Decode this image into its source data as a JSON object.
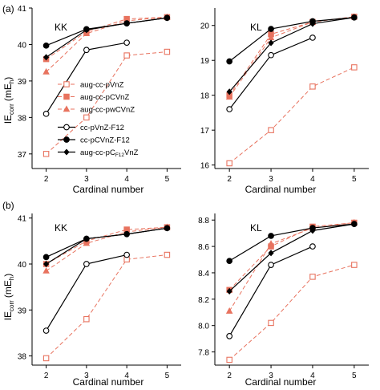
{
  "figure": {
    "ylabel_main": "IE",
    "ylabel_sub": "corr",
    "ylabel_unit": "(mE",
    "ylabel_unit_sub": "h",
    "ylabel_close": ")"
  },
  "legend_entries": [
    {
      "label": "aug-cc-pVnZ",
      "color": "#e8735f",
      "dash": "5,3",
      "marker": "open-square"
    },
    {
      "label": "aug-cc-pCVnZ",
      "color": "#e8735f",
      "dash": "5,3",
      "marker": "filled-square"
    },
    {
      "label": "aug-cc-pwCVnZ",
      "color": "#e8735f",
      "dash": "5,3",
      "marker": "filled-triangle"
    },
    {
      "label": "cc-pVnZ-F12",
      "color": "#000000",
      "dash": "",
      "marker": "open-circle"
    },
    {
      "label": "cc-pCVnZ-F12",
      "color": "#000000",
      "dash": "",
      "marker": "filled-circle"
    },
    {
      "label": "aug-cc-pCF12VnZ",
      "label_pre": "aug-cc-pC",
      "label_sub": "F12",
      "label_post": "VnZ",
      "color": "#000000",
      "dash": "",
      "marker": "filled-diamond"
    }
  ],
  "chart_data": [
    {
      "type": "line",
      "row_label": "(a)",
      "title": "KK",
      "xlabel": "Cardinal number",
      "xlim": [
        1.65,
        5.35
      ],
      "ylim": [
        36.6,
        41
      ],
      "xticks": [
        "2",
        "3",
        "4",
        "5"
      ],
      "yticks": [
        "37",
        "38",
        "39",
        "40",
        "41"
      ],
      "show_legend": true,
      "series": [
        {
          "name": "aug-cc-pVnZ",
          "x": [
            2,
            3,
            4,
            5
          ],
          "values": [
            37.0,
            38.0,
            39.7,
            39.8
          ]
        },
        {
          "name": "aug-cc-pCVnZ",
          "x": [
            2,
            3,
            4,
            5
          ],
          "values": [
            39.6,
            40.35,
            40.7,
            40.75
          ]
        },
        {
          "name": "aug-cc-pwCVnZ",
          "x": [
            2,
            3,
            4,
            5
          ],
          "values": [
            39.25,
            40.3,
            40.65,
            40.75
          ]
        },
        {
          "name": "cc-pVnZ-F12",
          "x": [
            2,
            3,
            4
          ],
          "values": [
            38.1,
            39.85,
            40.05
          ]
        },
        {
          "name": "cc-pCVnZ-F12",
          "x": [
            2,
            3,
            4,
            5
          ],
          "values": [
            39.97,
            40.42,
            40.58,
            40.73
          ]
        },
        {
          "name": "aug-cc-pCF12VnZ",
          "x": [
            2,
            3,
            4,
            5
          ],
          "values": [
            39.65,
            40.4,
            40.58,
            40.73
          ]
        }
      ]
    },
    {
      "type": "line",
      "row_label": "",
      "title": "KL",
      "xlabel": "Cardinal number",
      "xlim": [
        1.65,
        5.35
      ],
      "ylim": [
        15.9,
        20.5
      ],
      "xticks": [
        "2",
        "3",
        "4",
        "5"
      ],
      "yticks": [
        "16",
        "17",
        "18",
        "19",
        "20"
      ],
      "show_legend": false,
      "series": [
        {
          "name": "aug-cc-pVnZ",
          "x": [
            2,
            3,
            4,
            5
          ],
          "values": [
            16.05,
            17.0,
            18.25,
            18.8
          ]
        },
        {
          "name": "aug-cc-pCVnZ",
          "x": [
            2,
            3,
            4,
            5
          ],
          "values": [
            18.0,
            19.75,
            20.1,
            20.25
          ]
        },
        {
          "name": "aug-cc-pwCVnZ",
          "x": [
            2,
            3,
            4,
            5
          ],
          "values": [
            17.95,
            19.65,
            20.1,
            20.25
          ]
        },
        {
          "name": "cc-pVnZ-F12",
          "x": [
            2,
            3,
            4
          ],
          "values": [
            17.6,
            19.15,
            19.65
          ]
        },
        {
          "name": "cc-pCVnZ-F12",
          "x": [
            2,
            3,
            4,
            5
          ],
          "values": [
            18.97,
            19.9,
            20.12,
            20.23
          ]
        },
        {
          "name": "aug-cc-pCF12VnZ",
          "x": [
            2,
            3,
            4,
            5
          ],
          "values": [
            18.1,
            19.5,
            20.05,
            20.23
          ]
        }
      ]
    },
    {
      "type": "line",
      "row_label": "(b)",
      "title": "KK",
      "xlabel": "Cardinal number",
      "xlim": [
        1.65,
        5.35
      ],
      "ylim": [
        37.8,
        41.1
      ],
      "xticks": [
        "2",
        "3",
        "4",
        "5"
      ],
      "yticks": [
        "38",
        "39",
        "40",
        "41"
      ],
      "show_legend": false,
      "series": [
        {
          "name": "aug-cc-pVnZ",
          "x": [
            2,
            3,
            4,
            5
          ],
          "values": [
            37.95,
            38.8,
            40.1,
            40.2
          ]
        },
        {
          "name": "aug-cc-pCVnZ",
          "x": [
            2,
            3,
            4,
            5
          ],
          "values": [
            40.0,
            40.5,
            40.75,
            40.8
          ]
        },
        {
          "name": "aug-cc-pwCVnZ",
          "x": [
            2,
            3,
            4,
            5
          ],
          "values": [
            39.85,
            40.45,
            40.7,
            40.8
          ]
        },
        {
          "name": "cc-pVnZ-F12",
          "x": [
            2,
            3,
            4
          ],
          "values": [
            38.55,
            40.0,
            40.2
          ]
        },
        {
          "name": "cc-pCVnZ-F12",
          "x": [
            2,
            3,
            4,
            5
          ],
          "values": [
            40.15,
            40.55,
            40.65,
            40.78
          ]
        },
        {
          "name": "aug-cc-pCF12VnZ",
          "x": [
            2,
            3,
            4,
            5
          ],
          "values": [
            40.0,
            40.55,
            40.65,
            40.78
          ]
        }
      ]
    },
    {
      "type": "line",
      "row_label": "",
      "title": "KL",
      "xlabel": "Cardinal number",
      "xlim": [
        1.65,
        5.35
      ],
      "ylim": [
        7.7,
        8.85
      ],
      "xticks": [
        "2",
        "3",
        "4",
        "5"
      ],
      "yticks": [
        "7.8",
        "8.0",
        "8.2",
        "8.4",
        "8.6",
        "8.8"
      ],
      "show_legend": false,
      "series": [
        {
          "name": "aug-cc-pVnZ",
          "x": [
            2,
            3,
            4,
            5
          ],
          "values": [
            7.74,
            8.02,
            8.37,
            8.46
          ]
        },
        {
          "name": "aug-cc-pCVnZ",
          "x": [
            2,
            3,
            4,
            5
          ],
          "values": [
            8.27,
            8.6,
            8.75,
            8.78
          ]
        },
        {
          "name": "aug-cc-pwCVnZ",
          "x": [
            2,
            3,
            4,
            5
          ],
          "values": [
            8.11,
            8.62,
            8.74,
            8.78
          ]
        },
        {
          "name": "cc-pVnZ-F12",
          "x": [
            2,
            3,
            4
          ],
          "values": [
            7.92,
            8.46,
            8.6
          ]
        },
        {
          "name": "cc-pCVnZ-F12",
          "x": [
            2,
            3,
            4,
            5
          ],
          "values": [
            8.49,
            8.68,
            8.74,
            8.77
          ]
        },
        {
          "name": "aug-cc-pCF12VnZ",
          "x": [
            2,
            3,
            4,
            5
          ],
          "values": [
            8.26,
            8.55,
            8.72,
            8.77
          ]
        }
      ]
    }
  ]
}
